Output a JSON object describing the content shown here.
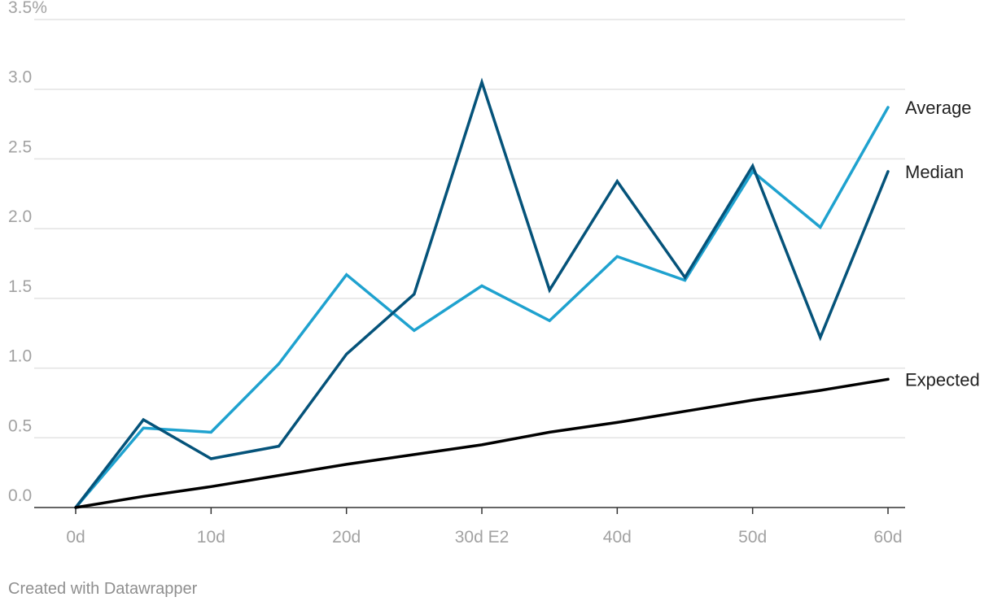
{
  "chart_data": {
    "type": "line",
    "x": [
      0,
      5,
      10,
      15,
      20,
      25,
      30,
      35,
      40,
      45,
      50,
      55,
      60
    ],
    "x_ticks": [
      {
        "value": 0,
        "label": "0d"
      },
      {
        "value": 10,
        "label": "10d"
      },
      {
        "value": 20,
        "label": "20d"
      },
      {
        "value": 30,
        "label": "30d E2"
      },
      {
        "value": 40,
        "label": "40d"
      },
      {
        "value": 50,
        "label": "50d"
      },
      {
        "value": 60,
        "label": "60d"
      }
    ],
    "y_ticks": [
      {
        "value": 0,
        "label": "0.0"
      },
      {
        "value": 0.5,
        "label": "0.5"
      },
      {
        "value": 1.0,
        "label": "1.0"
      },
      {
        "value": 1.5,
        "label": "1.5"
      },
      {
        "value": 2.0,
        "label": "2.0"
      },
      {
        "value": 2.5,
        "label": "2.5"
      },
      {
        "value": 3.0,
        "label": "3.0"
      },
      {
        "value": 3.5,
        "label": "3.5%"
      }
    ],
    "xlim": [
      0,
      60
    ],
    "ylim": [
      0,
      3.5
    ],
    "grid": true,
    "series": [
      {
        "name": "Average",
        "color": "#1fa2cf",
        "values": [
          0,
          0.57,
          0.54,
          1.03,
          1.67,
          1.27,
          1.59,
          1.34,
          1.8,
          1.63,
          2.41,
          2.01,
          2.87
        ]
      },
      {
        "name": "Median",
        "color": "#05537a",
        "values": [
          0,
          0.63,
          0.35,
          0.44,
          1.1,
          1.53,
          3.05,
          1.56,
          2.34,
          1.65,
          2.45,
          1.22,
          2.41
        ]
      },
      {
        "name": "Expected",
        "color": "#000000",
        "values": [
          0,
          0.08,
          0.15,
          0.23,
          0.31,
          0.38,
          0.45,
          0.54,
          0.61,
          0.69,
          0.77,
          0.84,
          0.92
        ]
      }
    ]
  },
  "footer": {
    "credit": "Created with Datawrapper"
  }
}
